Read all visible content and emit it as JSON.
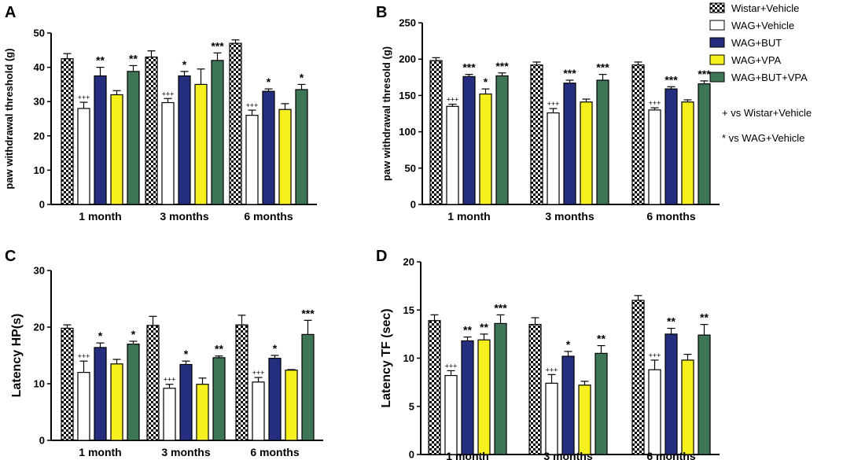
{
  "legend": {
    "entries": [
      "Wistar+Vehicle",
      "WAG+Vehicle",
      "WAG+BUT",
      "WAG+VPA",
      "WAG+BUT+VPA"
    ],
    "notes": [
      "+ vs Wistar+Vehicle",
      "* vs WAG+Vehicle"
    ]
  },
  "colors": {
    "wistar_vehicle": "checkerboard #000000/#ffffff",
    "wag_vehicle": "#ffffff",
    "wag_but": "#252e7e",
    "wag_vpa": "#f6f01e",
    "wag_but_vpa": "#3e7556"
  },
  "chart_data": [
    {
      "panel": "A",
      "type": "bar",
      "ylabel": "paw  withdrawal threshold (g)",
      "ylim": [
        0,
        50
      ],
      "yticks": [
        0,
        10,
        20,
        30,
        40,
        50
      ],
      "categories": [
        "1 month",
        "3 months",
        "6 months"
      ],
      "series": [
        {
          "name": "Wistar+Vehicle",
          "values": [
            42.5,
            43,
            47
          ],
          "errors": [
            1.5,
            1.8,
            1
          ],
          "annotations": [
            "",
            "",
            ""
          ]
        },
        {
          "name": "WAG+Vehicle",
          "values": [
            28,
            29.7,
            26
          ],
          "errors": [
            1.8,
            1.2,
            1.5
          ],
          "annotations": [
            "+++",
            "+++",
            "+++"
          ]
        },
        {
          "name": "WAG+BUT",
          "values": [
            37.5,
            37.5,
            33
          ],
          "errors": [
            2.5,
            1.3,
            0.7
          ],
          "annotations": [
            "**",
            "*",
            "*"
          ]
        },
        {
          "name": "WAG+VPA",
          "values": [
            32,
            35,
            27.7
          ],
          "errors": [
            1.2,
            4.5,
            1.7
          ],
          "annotations": [
            "",
            "",
            ""
          ]
        },
        {
          "name": "WAG+BUT+VPA",
          "values": [
            38.8,
            42,
            33.5
          ],
          "errors": [
            1.7,
            2.2,
            1.5
          ],
          "annotations": [
            "**",
            "***",
            "*"
          ]
        }
      ]
    },
    {
      "panel": "B",
      "type": "bar",
      "ylabel": "paw  withdrawal thresold (g)",
      "ylim": [
        0,
        250
      ],
      "yticks": [
        0,
        50,
        100,
        150,
        200,
        250
      ],
      "categories": [
        "1 month",
        "3 months",
        "6 months"
      ],
      "series": [
        {
          "name": "Wistar+Vehicle",
          "values": [
            198,
            192,
            192
          ],
          "errors": [
            4,
            4,
            4
          ],
          "annotations": [
            "",
            "",
            ""
          ]
        },
        {
          "name": "WAG+Vehicle",
          "values": [
            135,
            126,
            130
          ],
          "errors": [
            3,
            6,
            3
          ],
          "annotations": [
            "+++",
            "+++",
            "+++"
          ]
        },
        {
          "name": "WAG+BUT",
          "values": [
            176,
            167,
            159
          ],
          "errors": [
            3,
            4,
            3
          ],
          "annotations": [
            "***",
            "***",
            "***"
          ]
        },
        {
          "name": "WAG+VPA",
          "values": [
            152,
            141,
            141
          ],
          "errors": [
            7,
            4,
            3
          ],
          "annotations": [
            "*",
            "",
            ""
          ]
        },
        {
          "name": "WAG+BUT+VPA",
          "values": [
            177,
            171,
            166
          ],
          "errors": [
            4,
            8,
            4
          ],
          "annotations": [
            "***",
            "***",
            "***"
          ]
        }
      ]
    },
    {
      "panel": "C",
      "type": "bar",
      "ylabel": "Latency HP(s)",
      "ylim": [
        0,
        30
      ],
      "yticks": [
        0,
        10,
        20,
        30
      ],
      "categories": [
        "1 month",
        "3 months",
        "6 months"
      ],
      "series": [
        {
          "name": "Wistar+Vehicle",
          "values": [
            19.8,
            20.3,
            20.4
          ],
          "errors": [
            0.6,
            1.6,
            1.7
          ],
          "annotations": [
            "",
            "",
            ""
          ]
        },
        {
          "name": "WAG+Vehicle",
          "values": [
            12,
            9.2,
            10.3
          ],
          "errors": [
            2,
            0.7,
            0.8
          ],
          "annotations": [
            "+++",
            "+++",
            "+++"
          ]
        },
        {
          "name": "WAG+BUT",
          "values": [
            16.4,
            13.4,
            14.5
          ],
          "errors": [
            0.8,
            0.6,
            0.5
          ],
          "annotations": [
            "*",
            "*",
            "*"
          ]
        },
        {
          "name": "WAG+VPA",
          "values": [
            13.5,
            9.9,
            12.4
          ],
          "errors": [
            0.8,
            1.1,
            0.1
          ],
          "annotations": [
            "",
            "",
            ""
          ]
        },
        {
          "name": "WAG+BUT+VPA",
          "values": [
            17,
            14.6,
            18.7
          ],
          "errors": [
            0.5,
            0.3,
            2.5
          ],
          "annotations": [
            "*",
            "**",
            "***"
          ]
        }
      ]
    },
    {
      "panel": "D",
      "type": "bar",
      "ylabel": "Latency TF (sec)",
      "ylim": [
        0,
        20
      ],
      "yticks": [
        0,
        5,
        10,
        15,
        20
      ],
      "categories": [
        "1 month",
        "3 months",
        "6 months"
      ],
      "series": [
        {
          "name": "Wistar+Vehicle",
          "values": [
            13.9,
            13.5,
            16
          ],
          "errors": [
            0.6,
            0.7,
            0.5
          ],
          "annotations": [
            "",
            "",
            ""
          ]
        },
        {
          "name": "WAG+Vehicle",
          "values": [
            8.2,
            7.4,
            8.8
          ],
          "errors": [
            0.5,
            0.9,
            1
          ],
          "annotations": [
            "+++",
            "+++",
            "+++"
          ]
        },
        {
          "name": "WAG+BUT",
          "values": [
            11.8,
            10.2,
            12.5
          ],
          "errors": [
            0.4,
            0.5,
            0.6
          ],
          "annotations": [
            "**",
            "*",
            "**"
          ]
        },
        {
          "name": "WAG+VPA",
          "values": [
            11.9,
            7.2,
            9.8
          ],
          "errors": [
            0.6,
            0.4,
            0.6
          ],
          "annotations": [
            "**",
            "",
            ""
          ]
        },
        {
          "name": "WAG+BUT+VPA",
          "values": [
            13.6,
            10.5,
            12.4
          ],
          "errors": [
            0.9,
            0.8,
            1.1
          ],
          "annotations": [
            "***",
            "**",
            "**"
          ]
        }
      ]
    }
  ]
}
